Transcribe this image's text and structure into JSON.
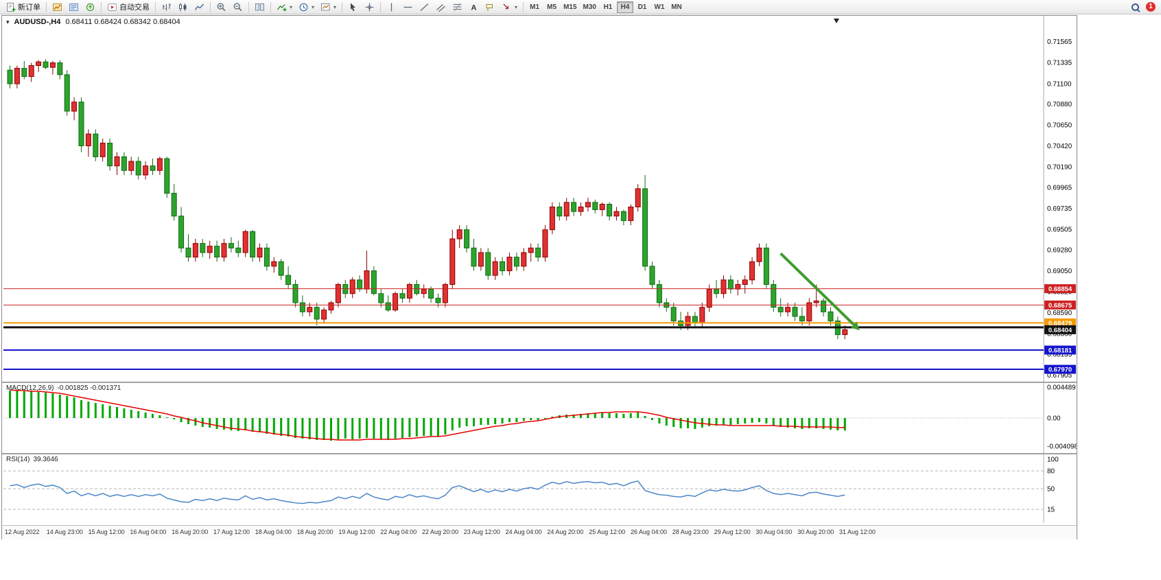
{
  "toolbar": {
    "new_order_label": "新订单",
    "auto_trading_label": "自动交易",
    "timeframes": [
      "M1",
      "M5",
      "M15",
      "M30",
      "H1",
      "H4",
      "D1",
      "W1",
      "MN"
    ],
    "active_timeframe": "H4",
    "badge_count": "1"
  },
  "chart": {
    "title": "AUDUSD-,H4",
    "ohlc_text": "0.68411 0.68424 0.68342 0.68404"
  },
  "colors": {
    "bull": "#E03232",
    "bull_edge": "#8B0000",
    "bear": "#2CA52C",
    "bear_edge": "#156815",
    "macd_hist": "#00A800",
    "macd_signal": "#E80000",
    "rsi_line": "#4A86C8",
    "arrow": "#3F9C2D"
  },
  "chart_data": [
    {
      "type": "candlestick",
      "title": "AUDUSD-,H4",
      "ylim": [
        0.6785,
        0.7171
      ],
      "y_ticks": [
        0.71565,
        0.71335,
        0.711,
        0.7088,
        0.7065,
        0.7042,
        0.7019,
        0.69965,
        0.69735,
        0.69505,
        0.6928,
        0.6905,
        0.6882,
        0.6859,
        0.6836,
        0.68135,
        0.67905
      ],
      "ohlc": [
        [
          0.7125,
          0.713,
          0.7105,
          0.711
        ],
        [
          0.711,
          0.713,
          0.7105,
          0.7127
        ],
        [
          0.7127,
          0.7135,
          0.7115,
          0.7118
        ],
        [
          0.7118,
          0.7133,
          0.7112,
          0.713
        ],
        [
          0.713,
          0.7136,
          0.7123,
          0.7134
        ],
        [
          0.7134,
          0.7137,
          0.7126,
          0.7128
        ],
        [
          0.7128,
          0.7135,
          0.712,
          0.7133
        ],
        [
          0.7133,
          0.7136,
          0.7115,
          0.712
        ],
        [
          0.712,
          0.7125,
          0.7075,
          0.708
        ],
        [
          0.708,
          0.7095,
          0.707,
          0.709
        ],
        [
          0.709,
          0.7095,
          0.7035,
          0.7042
        ],
        [
          0.7042,
          0.706,
          0.703,
          0.7055
        ],
        [
          0.7055,
          0.706,
          0.7025,
          0.703
        ],
        [
          0.703,
          0.705,
          0.7025,
          0.7045
        ],
        [
          0.7045,
          0.705,
          0.7015,
          0.702
        ],
        [
          0.702,
          0.7035,
          0.701,
          0.703
        ],
        [
          0.703,
          0.7035,
          0.701,
          0.7015
        ],
        [
          0.7015,
          0.703,
          0.701,
          0.7025
        ],
        [
          0.7025,
          0.703,
          0.7005,
          0.701
        ],
        [
          0.701,
          0.7025,
          0.7005,
          0.702
        ],
        [
          0.702,
          0.7028,
          0.701,
          0.7015
        ],
        [
          0.7015,
          0.703,
          0.701,
          0.7028
        ],
        [
          0.7028,
          0.703,
          0.6985,
          0.699
        ],
        [
          0.699,
          0.7,
          0.696,
          0.6965
        ],
        [
          0.6965,
          0.6975,
          0.6925,
          0.693
        ],
        [
          0.693,
          0.6945,
          0.6915,
          0.692
        ],
        [
          0.692,
          0.694,
          0.6915,
          0.6935
        ],
        [
          0.6935,
          0.694,
          0.692,
          0.6925
        ],
        [
          0.6925,
          0.6938,
          0.6918,
          0.6932
        ],
        [
          0.6932,
          0.6938,
          0.6915,
          0.692
        ],
        [
          0.692,
          0.694,
          0.6915,
          0.6935
        ],
        [
          0.6935,
          0.6942,
          0.6925,
          0.693
        ],
        [
          0.693,
          0.6938,
          0.692,
          0.6925
        ],
        [
          0.6925,
          0.695,
          0.692,
          0.6948
        ],
        [
          0.6948,
          0.695,
          0.6915,
          0.692
        ],
        [
          0.692,
          0.6935,
          0.6915,
          0.693
        ],
        [
          0.693,
          0.6935,
          0.6905,
          0.691
        ],
        [
          0.691,
          0.692,
          0.6903,
          0.6915
        ],
        [
          0.6915,
          0.6918,
          0.6895,
          0.69
        ],
        [
          0.69,
          0.691,
          0.6885,
          0.689
        ],
        [
          0.689,
          0.6895,
          0.6865,
          0.687
        ],
        [
          0.687,
          0.6878,
          0.6855,
          0.686
        ],
        [
          0.686,
          0.687,
          0.6855,
          0.6865
        ],
        [
          0.6865,
          0.687,
          0.6845,
          0.6852
        ],
        [
          0.6852,
          0.6865,
          0.6848,
          0.6862
        ],
        [
          0.6862,
          0.6872,
          0.6858,
          0.687
        ],
        [
          0.687,
          0.6892,
          0.6865,
          0.689
        ],
        [
          0.689,
          0.6895,
          0.6875,
          0.688
        ],
        [
          0.688,
          0.6898,
          0.6875,
          0.6895
        ],
        [
          0.6895,
          0.69,
          0.6882,
          0.6885
        ],
        [
          0.6885,
          0.6927,
          0.688,
          0.6905
        ],
        [
          0.6905,
          0.691,
          0.6878,
          0.688
        ],
        [
          0.688,
          0.6885,
          0.6865,
          0.687
        ],
        [
          0.687,
          0.6878,
          0.686,
          0.6862
        ],
        [
          0.6862,
          0.6882,
          0.686,
          0.688
        ],
        [
          0.688,
          0.6885,
          0.687,
          0.6875
        ],
        [
          0.6875,
          0.6892,
          0.687,
          0.689
        ],
        [
          0.689,
          0.6895,
          0.6878,
          0.688
        ],
        [
          0.688,
          0.689,
          0.6875,
          0.6885
        ],
        [
          0.6885,
          0.6888,
          0.687,
          0.6875
        ],
        [
          0.6875,
          0.688,
          0.6865,
          0.687
        ],
        [
          0.687,
          0.6892,
          0.6865,
          0.689
        ],
        [
          0.689,
          0.695,
          0.6885,
          0.694
        ],
        [
          0.694,
          0.6955,
          0.693,
          0.695
        ],
        [
          0.695,
          0.6955,
          0.6925,
          0.693
        ],
        [
          0.693,
          0.694,
          0.6905,
          0.691
        ],
        [
          0.691,
          0.693,
          0.6905,
          0.6925
        ],
        [
          0.6925,
          0.693,
          0.6895,
          0.69
        ],
        [
          0.69,
          0.692,
          0.6895,
          0.6915
        ],
        [
          0.6915,
          0.692,
          0.69,
          0.6905
        ],
        [
          0.6905,
          0.6925,
          0.69,
          0.692
        ],
        [
          0.692,
          0.6925,
          0.6905,
          0.691
        ],
        [
          0.691,
          0.693,
          0.6905,
          0.6925
        ],
        [
          0.6925,
          0.6935,
          0.6915,
          0.693
        ],
        [
          0.693,
          0.6935,
          0.6915,
          0.692
        ],
        [
          0.692,
          0.6955,
          0.6915,
          0.695
        ],
        [
          0.695,
          0.698,
          0.6945,
          0.6975
        ],
        [
          0.6975,
          0.698,
          0.696,
          0.6965
        ],
        [
          0.6965,
          0.6985,
          0.696,
          0.698
        ],
        [
          0.698,
          0.6985,
          0.6965,
          0.697
        ],
        [
          0.697,
          0.698,
          0.6965,
          0.6975
        ],
        [
          0.6975,
          0.6985,
          0.697,
          0.698
        ],
        [
          0.698,
          0.6983,
          0.6968,
          0.6972
        ],
        [
          0.6972,
          0.698,
          0.6965,
          0.6978
        ],
        [
          0.6978,
          0.698,
          0.696,
          0.6965
        ],
        [
          0.6965,
          0.6975,
          0.696,
          0.697
        ],
        [
          0.697,
          0.6972,
          0.6955,
          0.696
        ],
        [
          0.696,
          0.6978,
          0.6955,
          0.6975
        ],
        [
          0.6975,
          0.7,
          0.697,
          0.6995
        ],
        [
          0.6995,
          0.701,
          0.6905,
          0.691
        ],
        [
          0.691,
          0.6915,
          0.6885,
          0.689
        ],
        [
          0.689,
          0.6895,
          0.6865,
          0.687
        ],
        [
          0.687,
          0.6875,
          0.686,
          0.6865
        ],
        [
          0.6865,
          0.687,
          0.6845,
          0.685
        ],
        [
          0.685,
          0.686,
          0.684,
          0.6845
        ],
        [
          0.6845,
          0.686,
          0.684,
          0.6855
        ],
        [
          0.6855,
          0.686,
          0.6842,
          0.6848
        ],
        [
          0.6848,
          0.687,
          0.6843,
          0.6865
        ],
        [
          0.6865,
          0.689,
          0.686,
          0.6885
        ],
        [
          0.6885,
          0.6895,
          0.6875,
          0.688
        ],
        [
          0.688,
          0.69,
          0.6875,
          0.6895
        ],
        [
          0.6895,
          0.69,
          0.688,
          0.6885
        ],
        [
          0.6885,
          0.6895,
          0.6878,
          0.689
        ],
        [
          0.689,
          0.69,
          0.688,
          0.6895
        ],
        [
          0.6895,
          0.692,
          0.689,
          0.6915
        ],
        [
          0.6915,
          0.6935,
          0.691,
          0.693
        ],
        [
          0.693,
          0.6935,
          0.6885,
          0.689
        ],
        [
          0.689,
          0.6895,
          0.686,
          0.6865
        ],
        [
          0.6865,
          0.6875,
          0.6855,
          0.686
        ],
        [
          0.686,
          0.687,
          0.6855,
          0.6865
        ],
        [
          0.6865,
          0.687,
          0.685,
          0.6855
        ],
        [
          0.6855,
          0.6865,
          0.6845,
          0.685
        ],
        [
          0.685,
          0.6875,
          0.6845,
          0.687
        ],
        [
          0.687,
          0.689,
          0.6865,
          0.6872
        ],
        [
          0.6872,
          0.6875,
          0.6855,
          0.686
        ],
        [
          0.686,
          0.6865,
          0.6845,
          0.685
        ],
        [
          0.685,
          0.6855,
          0.683,
          0.6835
        ],
        [
          0.6835,
          0.6845,
          0.683,
          0.68404
        ]
      ],
      "levels": [
        {
          "value": 0.68854,
          "color": "#CC2222",
          "width": 1,
          "label": "0.68854",
          "label_bg": "#CC2222"
        },
        {
          "value": 0.68675,
          "color": "#CC2222",
          "width": 1,
          "label": "0.68675",
          "label_bg": "#CC2222"
        },
        {
          "value": 0.68479,
          "color": "#F59B00",
          "width": 2,
          "label": "0.68479",
          "label_bg": "#F59B00"
        },
        {
          "value": 0.6843,
          "color": "#111111",
          "width": 3,
          "label": "",
          "label_bg": ""
        },
        {
          "value": 0.68181,
          "color": "#1414CC",
          "width": 2,
          "label": "0.68181",
          "label_bg": "#1414CC"
        },
        {
          "value": 0.6797,
          "color": "#1414CC",
          "width": 2,
          "label": "0.67970",
          "label_bg": "#1414CC"
        }
      ],
      "bid": {
        "value": 0.68404,
        "label": "0.68404",
        "bg": "#111111"
      },
      "annotations": [
        {
          "type": "arrow",
          "from_index": 108,
          "from_price": 0.6924,
          "to_index": 118,
          "to_price": 0.6846
        }
      ],
      "time_labels": [
        "12 Aug 2022",
        "14 Aug 23:00",
        "15 Aug 12:00",
        "16 Aug 04:00",
        "16 Aug 20:00",
        "17 Aug 12:00",
        "18 Aug 04:00",
        "18 Aug 20:00",
        "19 Aug 12:00",
        "22 Aug 04:00",
        "22 Aug 20:00",
        "23 Aug 12:00",
        "24 Aug 04:00",
        "24 Aug 20:00",
        "25 Aug 12:00",
        "26 Aug 04:00",
        "28 Aug 23:00",
        "29 Aug 12:00",
        "30 Aug 04:00",
        "30 Aug 20:00",
        "31 Aug 12:00"
      ]
    },
    {
      "type": "bar",
      "name": "MACD(12,26,9)",
      "values_text": "-0.001825 -0.001371",
      "ylim": [
        -0.005,
        0.005
      ],
      "y_tick_labels": [
        "0.004489",
        "0.00",
        "-0.004098"
      ],
      "histogram": [
        0.004,
        0.0041,
        0.0039,
        0.004,
        0.0038,
        0.0037,
        0.0036,
        0.0034,
        0.0032,
        0.003,
        0.0026,
        0.0024,
        0.0022,
        0.002,
        0.0018,
        0.0016,
        0.0014,
        0.0012,
        0.001,
        0.0008,
        0.0006,
        0.0004,
        0.0001,
        -0.0002,
        -0.0006,
        -0.0009,
        -0.0011,
        -0.0013,
        -0.0014,
        -0.0016,
        -0.0017,
        -0.0018,
        -0.0019,
        -0.0018,
        -0.002,
        -0.0021,
        -0.0023,
        -0.0024,
        -0.0026,
        -0.0027,
        -0.0029,
        -0.003,
        -0.0031,
        -0.0032,
        -0.0032,
        -0.0033,
        -0.0031,
        -0.003,
        -0.0031,
        -0.003,
        -0.0029,
        -0.003,
        -0.0031,
        -0.0032,
        -0.003,
        -0.0029,
        -0.0028,
        -0.0027,
        -0.0026,
        -0.0026,
        -0.0027,
        -0.0024,
        -0.0018,
        -0.0014,
        -0.0012,
        -0.0012,
        -0.001,
        -0.001,
        -0.0009,
        -0.0008,
        -0.0006,
        -0.0006,
        -0.0004,
        -0.0003,
        -0.0003,
        -0.0001,
        0.0002,
        0.0004,
        0.0005,
        0.0005,
        0.0006,
        0.0007,
        0.0007,
        0.0008,
        0.0007,
        0.0007,
        0.0006,
        0.0007,
        0.0009,
        0.0003,
        -0.0003,
        -0.0008,
        -0.0011,
        -0.0013,
        -0.0015,
        -0.0015,
        -0.0016,
        -0.0014,
        -0.0012,
        -0.0011,
        -0.001,
        -0.001,
        -0.0009,
        -0.0008,
        -0.0007,
        -0.0006,
        -0.0008,
        -0.0011,
        -0.0013,
        -0.0014,
        -0.0015,
        -0.0016,
        -0.0015,
        -0.0015,
        -0.0016,
        -0.0017,
        -0.0018,
        -0.001825
      ],
      "signal": [
        0.0041,
        0.004,
        0.004,
        0.0039,
        0.0039,
        0.0038,
        0.0037,
        0.0036,
        0.0034,
        0.0032,
        0.003,
        0.0028,
        0.0026,
        0.0024,
        0.0022,
        0.002,
        0.0018,
        0.0016,
        0.0014,
        0.0012,
        0.001,
        0.0008,
        0.0006,
        0.0003,
        0.0001,
        -0.0002,
        -0.0004,
        -0.0007,
        -0.0009,
        -0.0011,
        -0.0013,
        -0.0015,
        -0.0016,
        -0.0017,
        -0.0019,
        -0.002,
        -0.0021,
        -0.0023,
        -0.0024,
        -0.0025,
        -0.0027,
        -0.0028,
        -0.0029,
        -0.003,
        -0.0031,
        -0.0031,
        -0.0032,
        -0.0032,
        -0.0032,
        -0.0032,
        -0.0031,
        -0.0031,
        -0.0031,
        -0.0031,
        -0.0031,
        -0.003,
        -0.003,
        -0.0029,
        -0.0028,
        -0.0027,
        -0.0027,
        -0.0026,
        -0.0024,
        -0.0022,
        -0.002,
        -0.0018,
        -0.0016,
        -0.0014,
        -0.0012,
        -0.0011,
        -0.0009,
        -0.0008,
        -0.0006,
        -0.0005,
        -0.0004,
        -0.0002,
        0.0,
        0.0002,
        0.0003,
        0.0004,
        0.0005,
        0.0006,
        0.0007,
        0.0008,
        0.0008,
        0.0009,
        0.0009,
        0.0009,
        0.0009,
        0.0008,
        0.0006,
        0.0004,
        0.0001,
        -0.0001,
        -0.0003,
        -0.0005,
        -0.0007,
        -0.0008,
        -0.0009,
        -0.001,
        -0.001,
        -0.0011,
        -0.0011,
        -0.0011,
        -0.0011,
        -0.0011,
        -0.0011,
        -0.0011,
        -0.0012,
        -0.0012,
        -0.0012,
        -0.0013,
        -0.0013,
        -0.0013,
        -0.0013,
        -0.0013,
        -0.0014,
        -0.001371
      ]
    },
    {
      "type": "line",
      "name": "RSI(14)",
      "value_text": "39.3646",
      "ylim": [
        -8,
        108
      ],
      "y_tick_labels": [
        "100",
        "80",
        "50",
        "15"
      ],
      "levels": [
        80,
        50,
        15
      ],
      "values": [
        55,
        57,
        52,
        56,
        58,
        54,
        56,
        52,
        42,
        46,
        38,
        42,
        38,
        42,
        37,
        40,
        37,
        40,
        37,
        40,
        38,
        41,
        34,
        31,
        28,
        27,
        32,
        30,
        33,
        30,
        34,
        32,
        31,
        38,
        32,
        35,
        31,
        33,
        30,
        28,
        26,
        25,
        27,
        26,
        28,
        30,
        36,
        33,
        37,
        34,
        42,
        36,
        33,
        31,
        37,
        35,
        40,
        36,
        38,
        35,
        33,
        39,
        52,
        55,
        50,
        45,
        49,
        44,
        48,
        45,
        49,
        46,
        50,
        52,
        49,
        56,
        61,
        58,
        62,
        59,
        61,
        62,
        60,
        61,
        57,
        59,
        55,
        60,
        63,
        47,
        43,
        40,
        39,
        37,
        36,
        39,
        37,
        43,
        48,
        46,
        49,
        47,
        46,
        48,
        52,
        55,
        47,
        42,
        40,
        42,
        40,
        38,
        43,
        44,
        41,
        39,
        37,
        39.3646
      ]
    }
  ]
}
